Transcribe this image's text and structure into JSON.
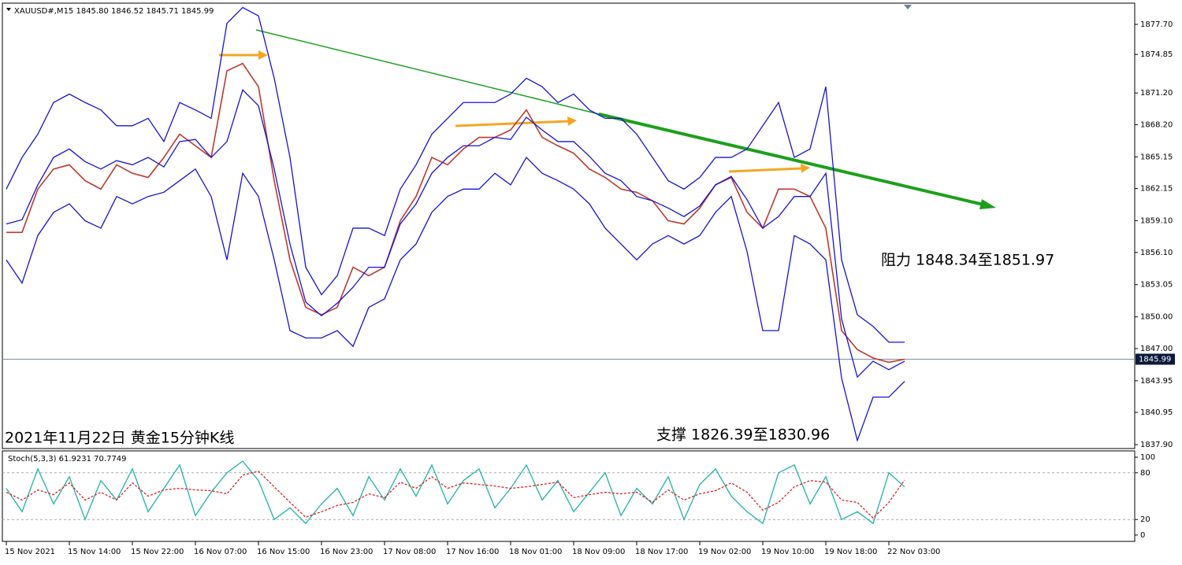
{
  "chart_data": [
    {
      "type": "price",
      "header": "XAUUSD#,M15 1845.80 1846.52 1845.71 1845.99",
      "annotations": [
        "阻力 1848.34至1851.97",
        "支撑 1826.39至1830.96",
        "2021年11月22日 黄金15分钟K线"
      ],
      "ylim": [
        1837.53,
        1879.71
      ],
      "yticks": [
        {
          "value": 1877.7,
          "label": "1877.70"
        },
        {
          "value": 1874.85,
          "label": "1874.85"
        },
        {
          "value": 1871.2,
          "label": "1871.20"
        },
        {
          "value": 1868.2,
          "label": "1868.20"
        },
        1865.15,
        1862.15,
        {
          "value": 1859.1,
          "label": "1859.10"
        },
        {
          "value": 1856.1,
          "label": "1856.10"
        },
        1853.05,
        {
          "value": 1850,
          "label": "1850.00"
        },
        {
          "value": 1847,
          "label": "1847.00"
        },
        1843.95,
        1840.95,
        {
          "value": 1837.9,
          "label": "1837.90"
        }
      ],
      "current_price": 1845.99,
      "series": [
        {
          "name": "Close",
          "color": "#c0392b",
          "values": [
            1858.0,
            1858.0,
            1862.1,
            1864.0,
            1864.4,
            1862.9,
            1862.1,
            1864.4,
            1863.6,
            1863.2,
            1865.1,
            1867.3,
            1866.2,
            1865.1,
            1873.3,
            1874.0,
            1871.8,
            1862.9,
            1855.4,
            1850.9,
            1850.2,
            1850.9,
            1854.7,
            1853.9,
            1854.7,
            1859.1,
            1861.4,
            1865.1,
            1864.4,
            1865.9,
            1867.0,
            1867.0,
            1867.7,
            1869.6,
            1867.0,
            1866.2,
            1865.5,
            1864.0,
            1863.2,
            1862.1,
            1861.8,
            1861.0,
            1859.1,
            1858.8,
            1860.3,
            1862.5,
            1863.2,
            1859.9,
            1858.4,
            1862.1,
            1862.1,
            1861.4,
            1858.4,
            1848.7,
            1846.9,
            1846.1,
            1845.7,
            1845.99
          ]
        },
        {
          "name": "Upper",
          "color": "#1414d8",
          "values": [
            1862.1,
            1865.1,
            1867.3,
            1870.3,
            1871.1,
            1870.3,
            1869.6,
            1868.1,
            1868.1,
            1868.8,
            1866.6,
            1870.3,
            1869.6,
            1868.8,
            1877.8,
            1879.3,
            1878.5,
            1872.6,
            1865.1,
            1854.7,
            1852.1,
            1853.9,
            1858.4,
            1858.4,
            1857.7,
            1862.1,
            1864.4,
            1867.3,
            1868.8,
            1870.3,
            1870.3,
            1870.3,
            1871.1,
            1872.6,
            1871.8,
            1870.3,
            1871.1,
            1869.6,
            1868.8,
            1868.8,
            1867.3,
            1865.1,
            1862.9,
            1862.1,
            1863.2,
            1865.1,
            1865.1,
            1865.9,
            1868.1,
            1870.3,
            1865.1,
            1865.9,
            1871.8,
            1855.4,
            1850.2,
            1849.1,
            1847.6,
            1847.6
          ]
        },
        {
          "name": "Middle",
          "color": "#1414d8",
          "values": [
            1858.8,
            1859.2,
            1862.5,
            1865.1,
            1865.9,
            1864.7,
            1864.0,
            1864.8,
            1864.4,
            1865.1,
            1864.2,
            1866.6,
            1866.8,
            1865.1,
            1866.6,
            1871.5,
            1870.0,
            1864.0,
            1856.9,
            1851.4,
            1850.1,
            1851.3,
            1852.8,
            1854.7,
            1854.7,
            1858.8,
            1860.7,
            1863.6,
            1865.1,
            1866.2,
            1866.2,
            1867.0,
            1866.8,
            1868.9,
            1867.7,
            1866.6,
            1866.6,
            1865.2,
            1863.6,
            1862.9,
            1861.4,
            1861.0,
            1860.3,
            1859.5,
            1860.5,
            1862.5,
            1863.3,
            1861.1,
            1858.4,
            1859.5,
            1861.4,
            1861.4,
            1863.6,
            1849.8,
            1844.3,
            1845.8,
            1845.0,
            1845.8
          ]
        },
        {
          "name": "Lower",
          "color": "#1414d8",
          "values": [
            1855.4,
            1853.2,
            1857.7,
            1859.9,
            1860.7,
            1859.1,
            1858.4,
            1861.4,
            1860.7,
            1861.4,
            1861.8,
            1862.9,
            1864.0,
            1861.4,
            1855.4,
            1863.6,
            1861.4,
            1855.4,
            1848.7,
            1848.0,
            1848.0,
            1848.7,
            1847.2,
            1850.9,
            1851.7,
            1855.4,
            1856.9,
            1859.9,
            1861.4,
            1862.1,
            1862.1,
            1863.6,
            1862.5,
            1865.1,
            1863.6,
            1862.9,
            1862.1,
            1860.7,
            1858.4,
            1856.9,
            1855.4,
            1856.9,
            1857.7,
            1856.9,
            1857.7,
            1859.9,
            1861.4,
            1856.2,
            1848.7,
            1848.7,
            1857.7,
            1856.9,
            1855.4,
            1844.2,
            1838.3,
            1842.4,
            1842.4,
            1843.9
          ]
        }
      ]
    },
    {
      "type": "stoch",
      "header": "Stoch(5,3,3) 61.9231 70.7749",
      "categories": [
        "15 Nov 2021",
        null,
        null,
        null,
        "15 Nov 14:00",
        null,
        null,
        null,
        "15 Nov 22:00",
        null,
        null,
        null,
        "16 Nov 07:00",
        null,
        null,
        null,
        "16 Nov 15:00",
        null,
        null,
        null,
        "16 Nov 23:00",
        null,
        null,
        null,
        "17 Nov 08:00",
        null,
        null,
        null,
        "17 Nov 16:00",
        null,
        null,
        null,
        "18 Nov 01:00",
        null,
        null,
        null,
        "18 Nov 09:00",
        null,
        null,
        null,
        "18 Nov 17:00",
        null,
        null,
        null,
        "19 Nov 02:00",
        null,
        null,
        null,
        "19 Nov 10:00",
        null,
        null,
        null,
        "19 Nov 18:00",
        null,
        null,
        null,
        "22 Nov 03:00",
        null
      ],
      "ylim": [
        -8.1,
        108.1
      ],
      "yticks": [
        100,
        80,
        20,
        0
      ],
      "levels": [
        80,
        20
      ],
      "series": [
        {
          "name": "Main",
          "color": "#20b2aa",
          "values": [
            60,
            30,
            85,
            40,
            75,
            20,
            70,
            45,
            85,
            30,
            60,
            90,
            25,
            55,
            80,
            95,
            70,
            20,
            35,
            15,
            40,
            60,
            25,
            75,
            45,
            85,
            50,
            90,
            40,
            70,
            85,
            35,
            60,
            90,
            45,
            70,
            30,
            55,
            80,
            25,
            60,
            40,
            75,
            20,
            65,
            85,
            50,
            30,
            15,
            80,
            90,
            40,
            75,
            20,
            30,
            15,
            80,
            61.9231
          ]
        },
        {
          "name": "Signal",
          "color": "#e02020",
          "values": [
            55,
            45,
            58,
            52,
            67,
            45,
            55,
            45,
            67,
            50,
            58,
            60,
            58,
            57,
            53,
            77,
            82,
            62,
            42,
            23,
            30,
            38,
            42,
            53,
            48,
            68,
            60,
            75,
            60,
            67,
            65,
            63,
            60,
            62,
            65,
            68,
            48,
            52,
            55,
            53,
            55,
            42,
            58,
            45,
            53,
            57,
            67,
            55,
            32,
            42,
            62,
            70,
            68,
            45,
            42,
            22,
            42,
            70.7749
          ]
        }
      ]
    }
  ]
}
